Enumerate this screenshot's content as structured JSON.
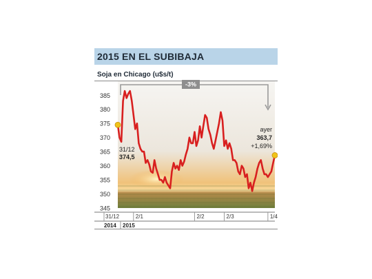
{
  "header": {
    "title": "2015 EN EL SUBIBAJA",
    "subtitle": "Soja en Chicago (u$s/t)"
  },
  "colors": {
    "title_band": "#b9d4e8",
    "line": "#d81f1f",
    "marker": "#f0c419",
    "sky_top": "#e9e6e0",
    "sunset": "#f2b25a",
    "field": "#6f7f3c"
  },
  "chart_data": {
    "type": "line",
    "title": "2015 EN EL SUBIBAJA",
    "subtitle": "Soja en Chicago (u$s/t)",
    "ylim": [
      345,
      388
    ],
    "y_ticks": [
      345,
      350,
      355,
      360,
      365,
      370,
      375,
      380,
      385
    ],
    "x_ticks": [
      "31/12",
      "2/1",
      "2/2",
      "2/3",
      "1/4"
    ],
    "x_years": [
      "2014",
      "2015"
    ],
    "grid": false,
    "annotations": {
      "change": "-3%",
      "start_date": "31/12",
      "start_value": "374,5",
      "end_label": "ayer",
      "end_value": "363,7",
      "end_change": "+1,69%"
    },
    "series": [
      {
        "x": [
          0,
          1,
          2,
          3,
          4,
          5,
          6,
          7,
          8,
          9,
          10,
          11,
          12,
          13,
          14,
          15,
          16,
          17,
          18,
          19,
          20,
          21,
          22,
          23,
          24,
          25,
          26,
          27,
          28,
          29,
          30,
          31,
          32,
          33,
          34,
          35,
          36,
          37,
          38,
          39,
          40,
          41,
          42,
          43,
          44,
          45,
          46,
          47,
          48,
          49,
          50,
          51,
          52,
          53,
          54,
          55,
          56,
          57,
          58,
          59,
          60,
          61,
          62,
          63,
          64,
          65,
          66,
          67,
          68,
          69,
          70,
          71,
          72,
          73,
          74,
          75,
          76,
          77,
          78,
          79,
          80,
          81,
          82,
          83,
          84,
          85,
          86,
          87,
          88,
          89,
          90
        ],
        "values": [
          374.5,
          370,
          368.5,
          383,
          386.5,
          384,
          385.5,
          386.5,
          383,
          378,
          373,
          375,
          368,
          366,
          365,
          365,
          361,
          362,
          360.5,
          358,
          357.5,
          362,
          359,
          357,
          355,
          355,
          354,
          356,
          354,
          353,
          352,
          358,
          361,
          359,
          360,
          358.5,
          362,
          360,
          361.5,
          364,
          366,
          370,
          368,
          368,
          372,
          367,
          369,
          374,
          370,
          374,
          378,
          377,
          373,
          371,
          368,
          366,
          369,
          372,
          375,
          379,
          376,
          367,
          369,
          366,
          368,
          366,
          362,
          362,
          361,
          358,
          357,
          360,
          359,
          356,
          357,
          352,
          354,
          351,
          354,
          356,
          359,
          361,
          362,
          359,
          357,
          357,
          356,
          357,
          358,
          361,
          363.7
        ]
      }
    ]
  }
}
